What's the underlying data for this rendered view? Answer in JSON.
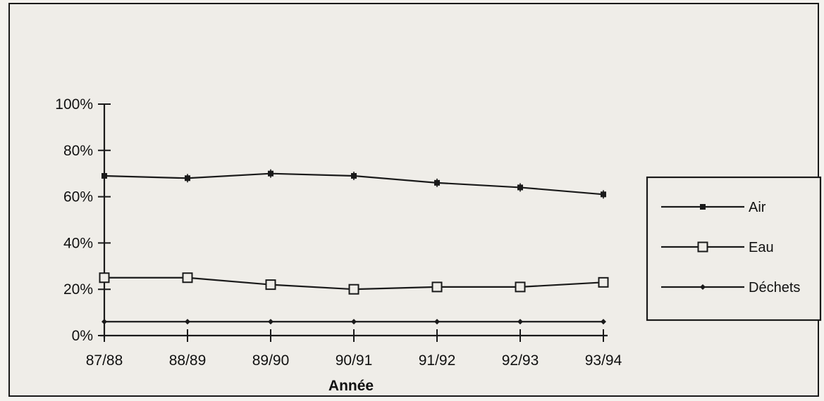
{
  "chart_data": {
    "type": "line",
    "title": "",
    "xlabel": "Année",
    "ylabel": "",
    "categories": [
      "87/88",
      "88/89",
      "89/90",
      "90/91",
      "91/92",
      "92/93",
      "93/94"
    ],
    "y_ticks": [
      "0%",
      "20%",
      "40%",
      "60%",
      "80%",
      "100%"
    ],
    "ylim": [
      0,
      100
    ],
    "grid": false,
    "legend_position": "right",
    "series": [
      {
        "name": "Air",
        "marker": "filled-square",
        "values": [
          69,
          68,
          70,
          69,
          66,
          64,
          61
        ]
      },
      {
        "name": "Eau",
        "marker": "open-square",
        "values": [
          25,
          25,
          22,
          20,
          21,
          21,
          23
        ]
      },
      {
        "name": "Déchets",
        "marker": "small-diamond",
        "values": [
          6,
          6,
          6,
          6,
          6,
          6,
          6
        ]
      }
    ]
  },
  "colors": {
    "line": "#1a1a1a",
    "background": "#efede8",
    "frame": "#1a1a1a"
  }
}
